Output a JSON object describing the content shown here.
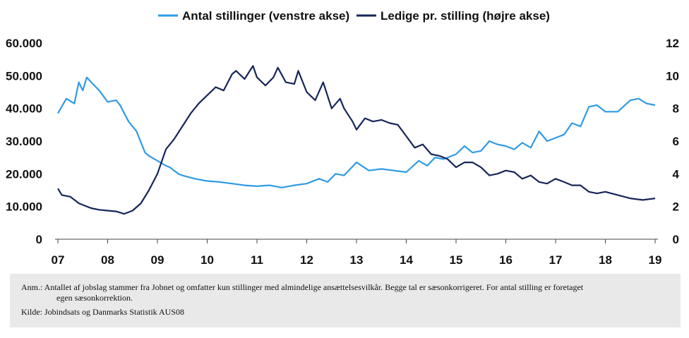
{
  "chart_data": {
    "type": "line",
    "legend": {
      "placement": "top-center",
      "entries": [
        "Antal stillinger (venstre akse)",
        "Ledige pr. stilling (højre akse)"
      ]
    },
    "x_tick_labels": [
      "07",
      "08",
      "09",
      "10",
      "11",
      "12",
      "13",
      "14",
      "15",
      "16",
      "17",
      "18",
      "19"
    ],
    "x_range": [
      2007,
      2019
    ],
    "y_left": {
      "range": [
        0,
        60000
      ],
      "tick_labels": [
        "0",
        "10.000",
        "20.000",
        "30.000",
        "40.000",
        "50.000",
        "60.000"
      ]
    },
    "y_right": {
      "range": [
        0,
        12
      ],
      "tick_labels": [
        "0",
        "2",
        "4",
        "6",
        "8",
        "10",
        "12"
      ]
    },
    "grid": false,
    "colors": {
      "left_series": "#2f9be6",
      "right_series": "#16265a"
    },
    "series": [
      {
        "name": "Antal stillinger (venstre akse)",
        "axis": "left",
        "x": [
          2007.0,
          2007.17,
          2007.33,
          2007.42,
          2007.5,
          2007.58,
          2007.67,
          2007.83,
          2008.0,
          2008.17,
          2008.25,
          2008.42,
          2008.58,
          2008.75,
          2008.83,
          2009.0,
          2009.17,
          2009.25,
          2009.42,
          2009.5,
          2009.75,
          2010.0,
          2010.25,
          2010.5,
          2010.75,
          2011.0,
          2011.25,
          2011.5,
          2011.75,
          2012.0,
          2012.25,
          2012.42,
          2012.58,
          2012.75,
          2013.0,
          2013.25,
          2013.5,
          2013.75,
          2014.0,
          2014.25,
          2014.42,
          2014.58,
          2014.75,
          2015.0,
          2015.17,
          2015.33,
          2015.5,
          2015.67,
          2015.83,
          2016.0,
          2016.17,
          2016.33,
          2016.5,
          2016.67,
          2016.83,
          2017.0,
          2017.17,
          2017.33,
          2017.5,
          2017.67,
          2017.83,
          2018.0,
          2018.25,
          2018.5,
          2018.67,
          2018.83,
          2019.0
        ],
        "values": [
          38500,
          43000,
          41500,
          48000,
          45500,
          49500,
          48000,
          45500,
          42000,
          42500,
          41000,
          36000,
          33000,
          26500,
          25500,
          24000,
          22500,
          22000,
          20000,
          19500,
          18500,
          17800,
          17500,
          17000,
          16500,
          16200,
          16500,
          15800,
          16500,
          17000,
          18500,
          17500,
          20000,
          19500,
          23500,
          21000,
          21500,
          21000,
          20500,
          24000,
          22500,
          25000,
          24500,
          26000,
          28500,
          26500,
          27000,
          30000,
          29000,
          28500,
          27500,
          29500,
          28000,
          33000,
          30000,
          31000,
          32000,
          35500,
          34500,
          40500,
          41000,
          39000,
          39000,
          42500,
          43000,
          41500,
          41000
        ]
      },
      {
        "name": "Ledige pr. stilling (højre akse)",
        "axis": "right",
        "x": [
          2007.0,
          2007.08,
          2007.25,
          2007.42,
          2007.5,
          2007.67,
          2007.83,
          2008.0,
          2008.17,
          2008.33,
          2008.5,
          2008.67,
          2008.83,
          2009.0,
          2009.17,
          2009.33,
          2009.5,
          2009.67,
          2009.83,
          2010.0,
          2010.17,
          2010.33,
          2010.5,
          2010.58,
          2010.75,
          2010.92,
          2011.0,
          2011.17,
          2011.33,
          2011.42,
          2011.58,
          2011.75,
          2011.83,
          2012.0,
          2012.17,
          2012.33,
          2012.5,
          2012.67,
          2012.75,
          2012.92,
          2013.0,
          2013.17,
          2013.33,
          2013.5,
          2013.67,
          2013.83,
          2014.0,
          2014.17,
          2014.33,
          2014.5,
          2014.67,
          2014.83,
          2015.0,
          2015.17,
          2015.33,
          2015.5,
          2015.67,
          2015.83,
          2016.0,
          2016.17,
          2016.33,
          2016.5,
          2016.67,
          2016.83,
          2017.0,
          2017.17,
          2017.33,
          2017.5,
          2017.67,
          2017.83,
          2018.0,
          2018.25,
          2018.5,
          2018.75,
          2019.0
        ],
        "values": [
          3.1,
          2.7,
          2.6,
          2.2,
          2.1,
          1.9,
          1.8,
          1.75,
          1.7,
          1.55,
          1.75,
          2.2,
          3.0,
          4.0,
          5.5,
          6.1,
          6.9,
          7.7,
          8.3,
          8.8,
          9.3,
          9.1,
          10.1,
          10.3,
          9.8,
          10.6,
          9.9,
          9.4,
          9.9,
          10.5,
          9.6,
          9.5,
          10.3,
          9.0,
          8.5,
          9.6,
          8.0,
          8.6,
          8.0,
          7.2,
          6.7,
          7.4,
          7.2,
          7.3,
          7.1,
          7.0,
          6.3,
          5.6,
          5.8,
          5.2,
          5.1,
          4.9,
          4.4,
          4.7,
          4.7,
          4.4,
          3.9,
          4.0,
          4.2,
          4.1,
          3.7,
          3.9,
          3.5,
          3.4,
          3.7,
          3.5,
          3.3,
          3.3,
          2.9,
          2.8,
          2.9,
          2.7,
          2.5,
          2.4,
          2.5
        ]
      }
    ],
    "notes": {
      "anm_line1": "Anm.: Antallet af jobslag stammer fra Jobnet og omfatter kun stillinger med almindelige ansættelsesvilkår. Begge tal er sæsonkorrigeret. For antal stilling er foretaget",
      "anm_line2": "egen sæsonkorrektion.",
      "source": "Kilde: Jobindsats og Danmarks Statistik AUS08"
    }
  }
}
